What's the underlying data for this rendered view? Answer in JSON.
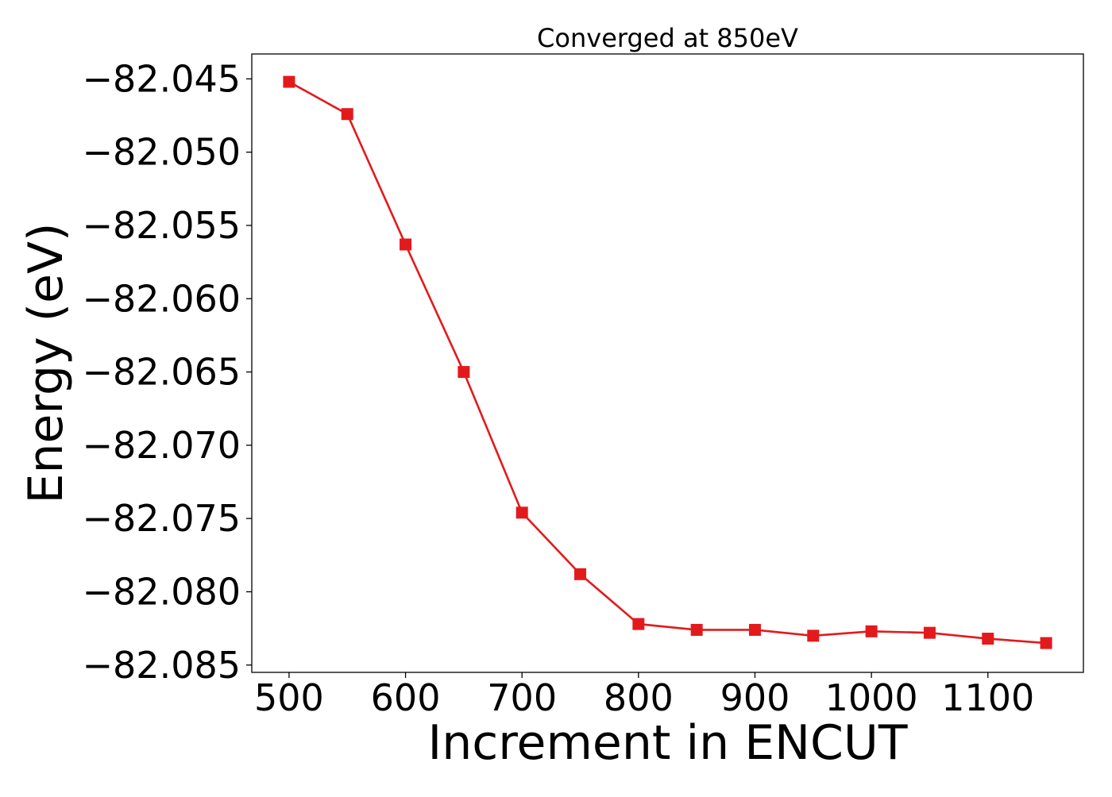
{
  "chart_data": {
    "type": "line",
    "title": "Converged at 850eV",
    "xlabel": "Increment in ENCUT",
    "ylabel": "Energy (eV)",
    "xlim": [
      468,
      1182
    ],
    "ylim": [
      -82.0855,
      -82.0433
    ],
    "x_ticks": [
      500,
      600,
      700,
      800,
      900,
      1000,
      1100
    ],
    "x_tick_labels": [
      "500",
      "600",
      "700",
      "800",
      "900",
      "1000",
      "1100"
    ],
    "y_ticks": [
      -82.045,
      -82.05,
      -82.055,
      -82.06,
      -82.065,
      -82.07,
      -82.075,
      -82.08,
      -82.085
    ],
    "y_tick_labels": [
      "−82.045",
      "−82.050",
      "−82.055",
      "−82.060",
      "−82.065",
      "−82.070",
      "−82.075",
      "−82.080",
      "−82.085"
    ],
    "grid": false,
    "series": [
      {
        "color": "#e31a1c",
        "marker": "square",
        "x": [
          500,
          550,
          600,
          650,
          700,
          750,
          800,
          850,
          900,
          950,
          1000,
          1050,
          1100,
          1150
        ],
        "y": [
          -82.0452,
          -82.0474,
          -82.0563,
          -82.065,
          -82.0746,
          -82.0788,
          -82.0822,
          -82.0826,
          -82.0826,
          -82.083,
          -82.0827,
          -82.0828,
          -82.0832,
          -82.0835
        ]
      }
    ]
  }
}
